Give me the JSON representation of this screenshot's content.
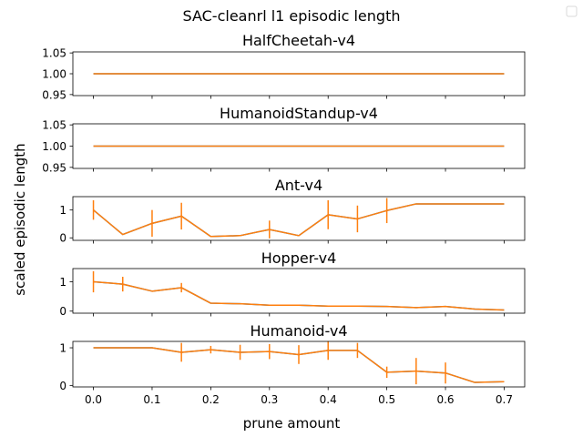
{
  "chart_data": {
    "type": "line",
    "title": "SAC-cleanrl l1 episodic length",
    "xlabel": "prune amount",
    "ylabel": "scaled episodic length",
    "xlim": [
      -0.035,
      0.735
    ],
    "x": [
      0.0,
      0.05,
      0.1,
      0.15,
      0.2,
      0.25,
      0.3,
      0.35,
      0.4,
      0.45,
      0.5,
      0.55,
      0.6,
      0.65,
      0.7
    ],
    "x_tick_labels": [
      "0.0",
      "0.1",
      "0.2",
      "0.3",
      "0.4",
      "0.5",
      "0.6",
      "0.7"
    ],
    "line_color": "#ff7f0e",
    "series_line_color": "#1f77b4",
    "legend": "top-right, empty",
    "grid": false,
    "subplots": [
      {
        "name": "HalfCheetah-v4",
        "ylim": [
          0.9475,
          1.0525
        ],
        "y_ticks": [
          0.95,
          1.0,
          1.05
        ],
        "y_tick_labels": [
          "0.95",
          "1.00",
          "1.05"
        ],
        "values": [
          1,
          1,
          1,
          1,
          1,
          1,
          1,
          1,
          1,
          1,
          1,
          1,
          1,
          1,
          1
        ],
        "errors": [
          0,
          0,
          0,
          0,
          0,
          0,
          0,
          0,
          0,
          0,
          0,
          0,
          0,
          0,
          0
        ]
      },
      {
        "name": "HumanoidStandup-v4",
        "ylim": [
          0.9475,
          1.0525
        ],
        "y_ticks": [
          0.95,
          1.0,
          1.05
        ],
        "y_tick_labels": [
          "0.95",
          "1.00",
          "1.05"
        ],
        "values": [
          1,
          1,
          1,
          1,
          1,
          1,
          1,
          1,
          1,
          1,
          1,
          1,
          1,
          1,
          1
        ],
        "errors": [
          0,
          0,
          0,
          0,
          0,
          0,
          0,
          0,
          0,
          0,
          0,
          0,
          0,
          0,
          0
        ]
      },
      {
        "name": "Ant-v4",
        "ylim": [
          -0.09,
          1.48
        ],
        "y_ticks": [
          0,
          1
        ],
        "y_tick_labels": [
          "0",
          "1"
        ],
        "values": [
          1.0,
          0.12,
          0.52,
          0.78,
          0.05,
          0.08,
          0.3,
          0.08,
          0.83,
          0.68,
          0.98,
          1.22,
          1.22,
          1.22,
          1.22
        ],
        "errors": [
          0.35,
          0,
          0.48,
          0.48,
          0,
          0,
          0.32,
          0,
          0.52,
          0.48,
          0.45,
          0,
          0,
          0,
          0
        ]
      },
      {
        "name": "Hopper-v4",
        "ylim": [
          -0.07,
          1.45
        ],
        "y_ticks": [
          0,
          1
        ],
        "y_tick_labels": [
          "0",
          "1"
        ],
        "values": [
          1.0,
          0.92,
          0.68,
          0.8,
          0.27,
          0.25,
          0.2,
          0.2,
          0.17,
          0.17,
          0.16,
          0.12,
          0.16,
          0.07,
          0.04
        ],
        "errors": [
          0.36,
          0.25,
          0,
          0.16,
          0,
          0,
          0,
          0,
          0,
          0,
          0,
          0,
          0,
          0,
          0
        ]
      },
      {
        "name": "Humanoid-v4",
        "ylim": [
          -0.04,
          1.17
        ],
        "y_ticks": [
          0,
          1
        ],
        "y_tick_labels": [
          "0",
          "1"
        ],
        "values": [
          1.0,
          1.0,
          1.0,
          0.88,
          0.95,
          0.88,
          0.9,
          0.82,
          0.93,
          0.93,
          0.35,
          0.38,
          0.33,
          0.08,
          0.1
        ],
        "errors": [
          0,
          0,
          0,
          0.25,
          0.1,
          0.2,
          0.2,
          0.25,
          0.25,
          0.2,
          0.15,
          0.35,
          0.28,
          0,
          0
        ]
      }
    ]
  }
}
